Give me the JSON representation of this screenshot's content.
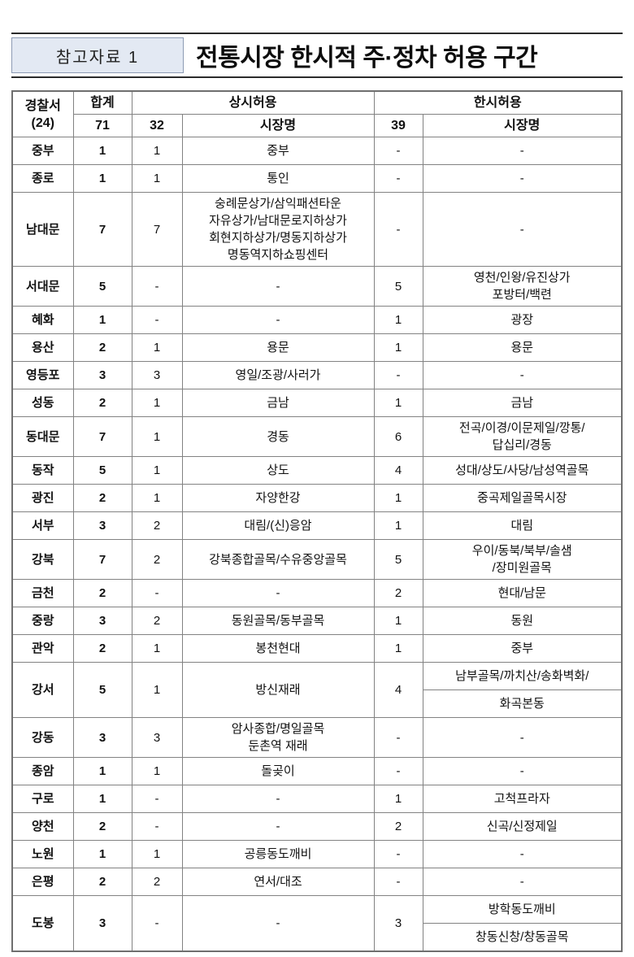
{
  "header": {
    "ref_label": "참고자료 1",
    "title": "전통시장 한시적 주·정차 허용 구간"
  },
  "table": {
    "header": {
      "station": "경찰서\n(24)",
      "total_label": "합계",
      "total_count": "71",
      "always_label": "상시허용",
      "always_count": "32",
      "always_market_label": "시장명",
      "temp_label": "한시허용",
      "temp_count": "39",
      "temp_market_label": "시장명"
    },
    "rows": [
      {
        "station": "중부",
        "total": "1",
        "always_n": "1",
        "always_market": "중부",
        "temp_n": "-",
        "temp_market": "-"
      },
      {
        "station": "종로",
        "total": "1",
        "always_n": "1",
        "always_market": "통인",
        "temp_n": "-",
        "temp_market": "-"
      },
      {
        "station": "남대문",
        "total": "7",
        "always_n": "7",
        "always_market": "숭례문상가/삼익패션타운\n자유상가/남대문로지하상가\n회현지하상가/명동지하상가\n명동역지하쇼핑센터",
        "temp_n": "-",
        "temp_market": "-"
      },
      {
        "station": "서대문",
        "total": "5",
        "always_n": "-",
        "always_market": "-",
        "temp_n": "5",
        "temp_market": "영천/인왕/유진상가\n포방터/백련"
      },
      {
        "station": "혜화",
        "total": "1",
        "always_n": "-",
        "always_market": "-",
        "temp_n": "1",
        "temp_market": "광장"
      },
      {
        "station": "용산",
        "total": "2",
        "always_n": "1",
        "always_market": "용문",
        "temp_n": "1",
        "temp_market": "용문"
      },
      {
        "station": "영등포",
        "total": "3",
        "always_n": "3",
        "always_market": "영일/조광/사러가",
        "temp_n": "-",
        "temp_market": "-"
      },
      {
        "station": "성동",
        "total": "2",
        "always_n": "1",
        "always_market": "금남",
        "temp_n": "1",
        "temp_market": "금남"
      },
      {
        "station": "동대문",
        "total": "7",
        "always_n": "1",
        "always_market": "경동",
        "temp_n": "6",
        "temp_market": "전곡/이경/이문제일/깡통/\n답십리/경동"
      },
      {
        "station": "동작",
        "total": "5",
        "always_n": "1",
        "always_market": "상도",
        "temp_n": "4",
        "temp_market": "성대/상도/사당/남성역골목"
      },
      {
        "station": "광진",
        "total": "2",
        "always_n": "1",
        "always_market": "자양한강",
        "temp_n": "1",
        "temp_market": "중곡제일골목시장"
      },
      {
        "station": "서부",
        "total": "3",
        "always_n": "2",
        "always_market": "대림/(신)응암",
        "temp_n": "1",
        "temp_market": "대림"
      },
      {
        "station": "강북",
        "total": "7",
        "always_n": "2",
        "always_market": "강북종합골목/수유중앙골목",
        "temp_n": "5",
        "temp_market": "우이/동북/북부/솔샘\n/장미원골목"
      },
      {
        "station": "금천",
        "total": "2",
        "always_n": "-",
        "always_market": "-",
        "temp_n": "2",
        "temp_market": "현대/남문"
      },
      {
        "station": "중랑",
        "total": "3",
        "always_n": "2",
        "always_market": "동원골목/동부골목",
        "temp_n": "1",
        "temp_market": "동원"
      },
      {
        "station": "관악",
        "total": "2",
        "always_n": "1",
        "always_market": "봉천현대",
        "temp_n": "1",
        "temp_market": "중부"
      },
      {
        "station": "강서",
        "total": "5",
        "always_n": "1",
        "always_market": "방신재래",
        "temp_n": "4",
        "temp_market_split": [
          "남부골목/까치산/송화벽화/",
          "화곡본동"
        ]
      },
      {
        "station": "강동",
        "total": "3",
        "always_n": "3",
        "always_market": "암사종합/명일골목\n둔촌역 재래",
        "temp_n": "-",
        "temp_market": "-"
      },
      {
        "station": "종암",
        "total": "1",
        "always_n": "1",
        "always_market": "돌곶이",
        "temp_n": "-",
        "temp_market": "-"
      },
      {
        "station": "구로",
        "total": "1",
        "always_n": "-",
        "always_market": "-",
        "temp_n": "1",
        "temp_market": "고척프라자"
      },
      {
        "station": "양천",
        "total": "2",
        "always_n": "-",
        "always_market": "-",
        "temp_n": "2",
        "temp_market": "신곡/신정제일"
      },
      {
        "station": "노원",
        "total": "1",
        "always_n": "1",
        "always_market": "공릉동도깨비",
        "temp_n": "-",
        "temp_market": "-"
      },
      {
        "station": "은평",
        "total": "2",
        "always_n": "2",
        "always_market": "연서/대조",
        "temp_n": "-",
        "temp_market": "-"
      },
      {
        "station": "도봉",
        "total": "3",
        "always_n": "-",
        "always_market": "-",
        "temp_n": "3",
        "temp_market_split": [
          "방학동도깨비",
          "창동신창/창동골목"
        ]
      }
    ]
  },
  "colors": {
    "rule_dark": "#2b2b2b",
    "ref_box_bg": "#e3e9f3",
    "ref_box_border": "#8d9bb4",
    "table_border_outer": "#6f6f6f",
    "table_border_inner": "#828282",
    "text": "#111111"
  }
}
